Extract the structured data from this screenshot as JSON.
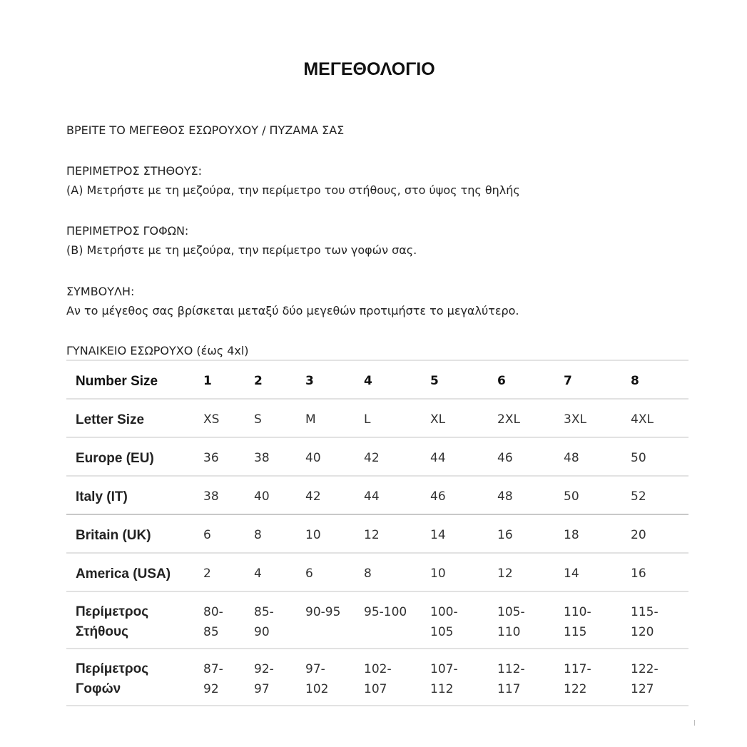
{
  "title": "ΜΕΓΕΘΟΛΟΓΙΟ",
  "subtitle": "ΒΡΕΙΤΕ ΤΟ ΜΕΓΕΘΟΣ ΕΣΩΡΟΥΧΟΥ / ΠΥΖΑΜΑ ΣΑΣ",
  "sections": [
    {
      "heading": "ΠΕΡΙΜΕΤΡΟΣ ΣΤΗΘΟΥΣ:",
      "text": "(Α) Μετρήστε με τη μεζούρα, την περίμετρο του στήθους, στο ύψος της θηλής"
    },
    {
      "heading": "ΠΕΡΙΜΕΤΡΟΣ ΓΟΦΩΝ:",
      "text": "(Β) Μετρήστε με τη μεζούρα, την περίμετρο των γοφών σας."
    },
    {
      "heading": "ΣΥΜΒΟΥΛΗ:",
      "text": "Αν το μέγεθος σας βρίσκεται μεταξύ δύο μεγεθών προτιμήστε το μεγαλύτερο."
    }
  ],
  "table": {
    "caption": "ΓΥΝΑΙΚΕΙΟ ΕΣΩΡΟΥΧΟ (έως 4xl)",
    "rows": [
      {
        "label": "Number Size",
        "cells": [
          "1",
          "2",
          "3",
          "4",
          "5",
          "6",
          "7",
          "8"
        ]
      },
      {
        "label": "Letter Size",
        "cells": [
          "XS",
          "S",
          "M",
          "L",
          "XL",
          "2XL",
          "3XL",
          "4XL"
        ]
      },
      {
        "label": "Europe (EU)",
        "cells": [
          "36",
          "38",
          "40",
          "42",
          "44",
          "46",
          "48",
          "50"
        ]
      },
      {
        "label": "Italy (IT)",
        "cells": [
          "38",
          "40",
          "42",
          "44",
          "46",
          "48",
          "50",
          "52"
        ]
      },
      {
        "label": "Britain (UK)",
        "cells": [
          "6",
          "8",
          "10",
          "12",
          "14",
          "16",
          "18",
          "20"
        ]
      },
      {
        "label": "America (USA)",
        "cells": [
          "2",
          "4",
          "6",
          "8",
          "10",
          "12",
          "14",
          "16"
        ]
      },
      {
        "label": "Περίμετρος Στήθους",
        "cells": [
          "80-85",
          "85-90",
          "90-95",
          "95-100",
          "100-105",
          "105-110",
          "110-115",
          "115-120"
        ]
      },
      {
        "label": "Περίμετρος Γοφών",
        "cells": [
          "87-92",
          "92-97",
          "97-102",
          "102-107",
          "107-112",
          "112-117",
          "117-122",
          "122-127"
        ]
      }
    ]
  }
}
